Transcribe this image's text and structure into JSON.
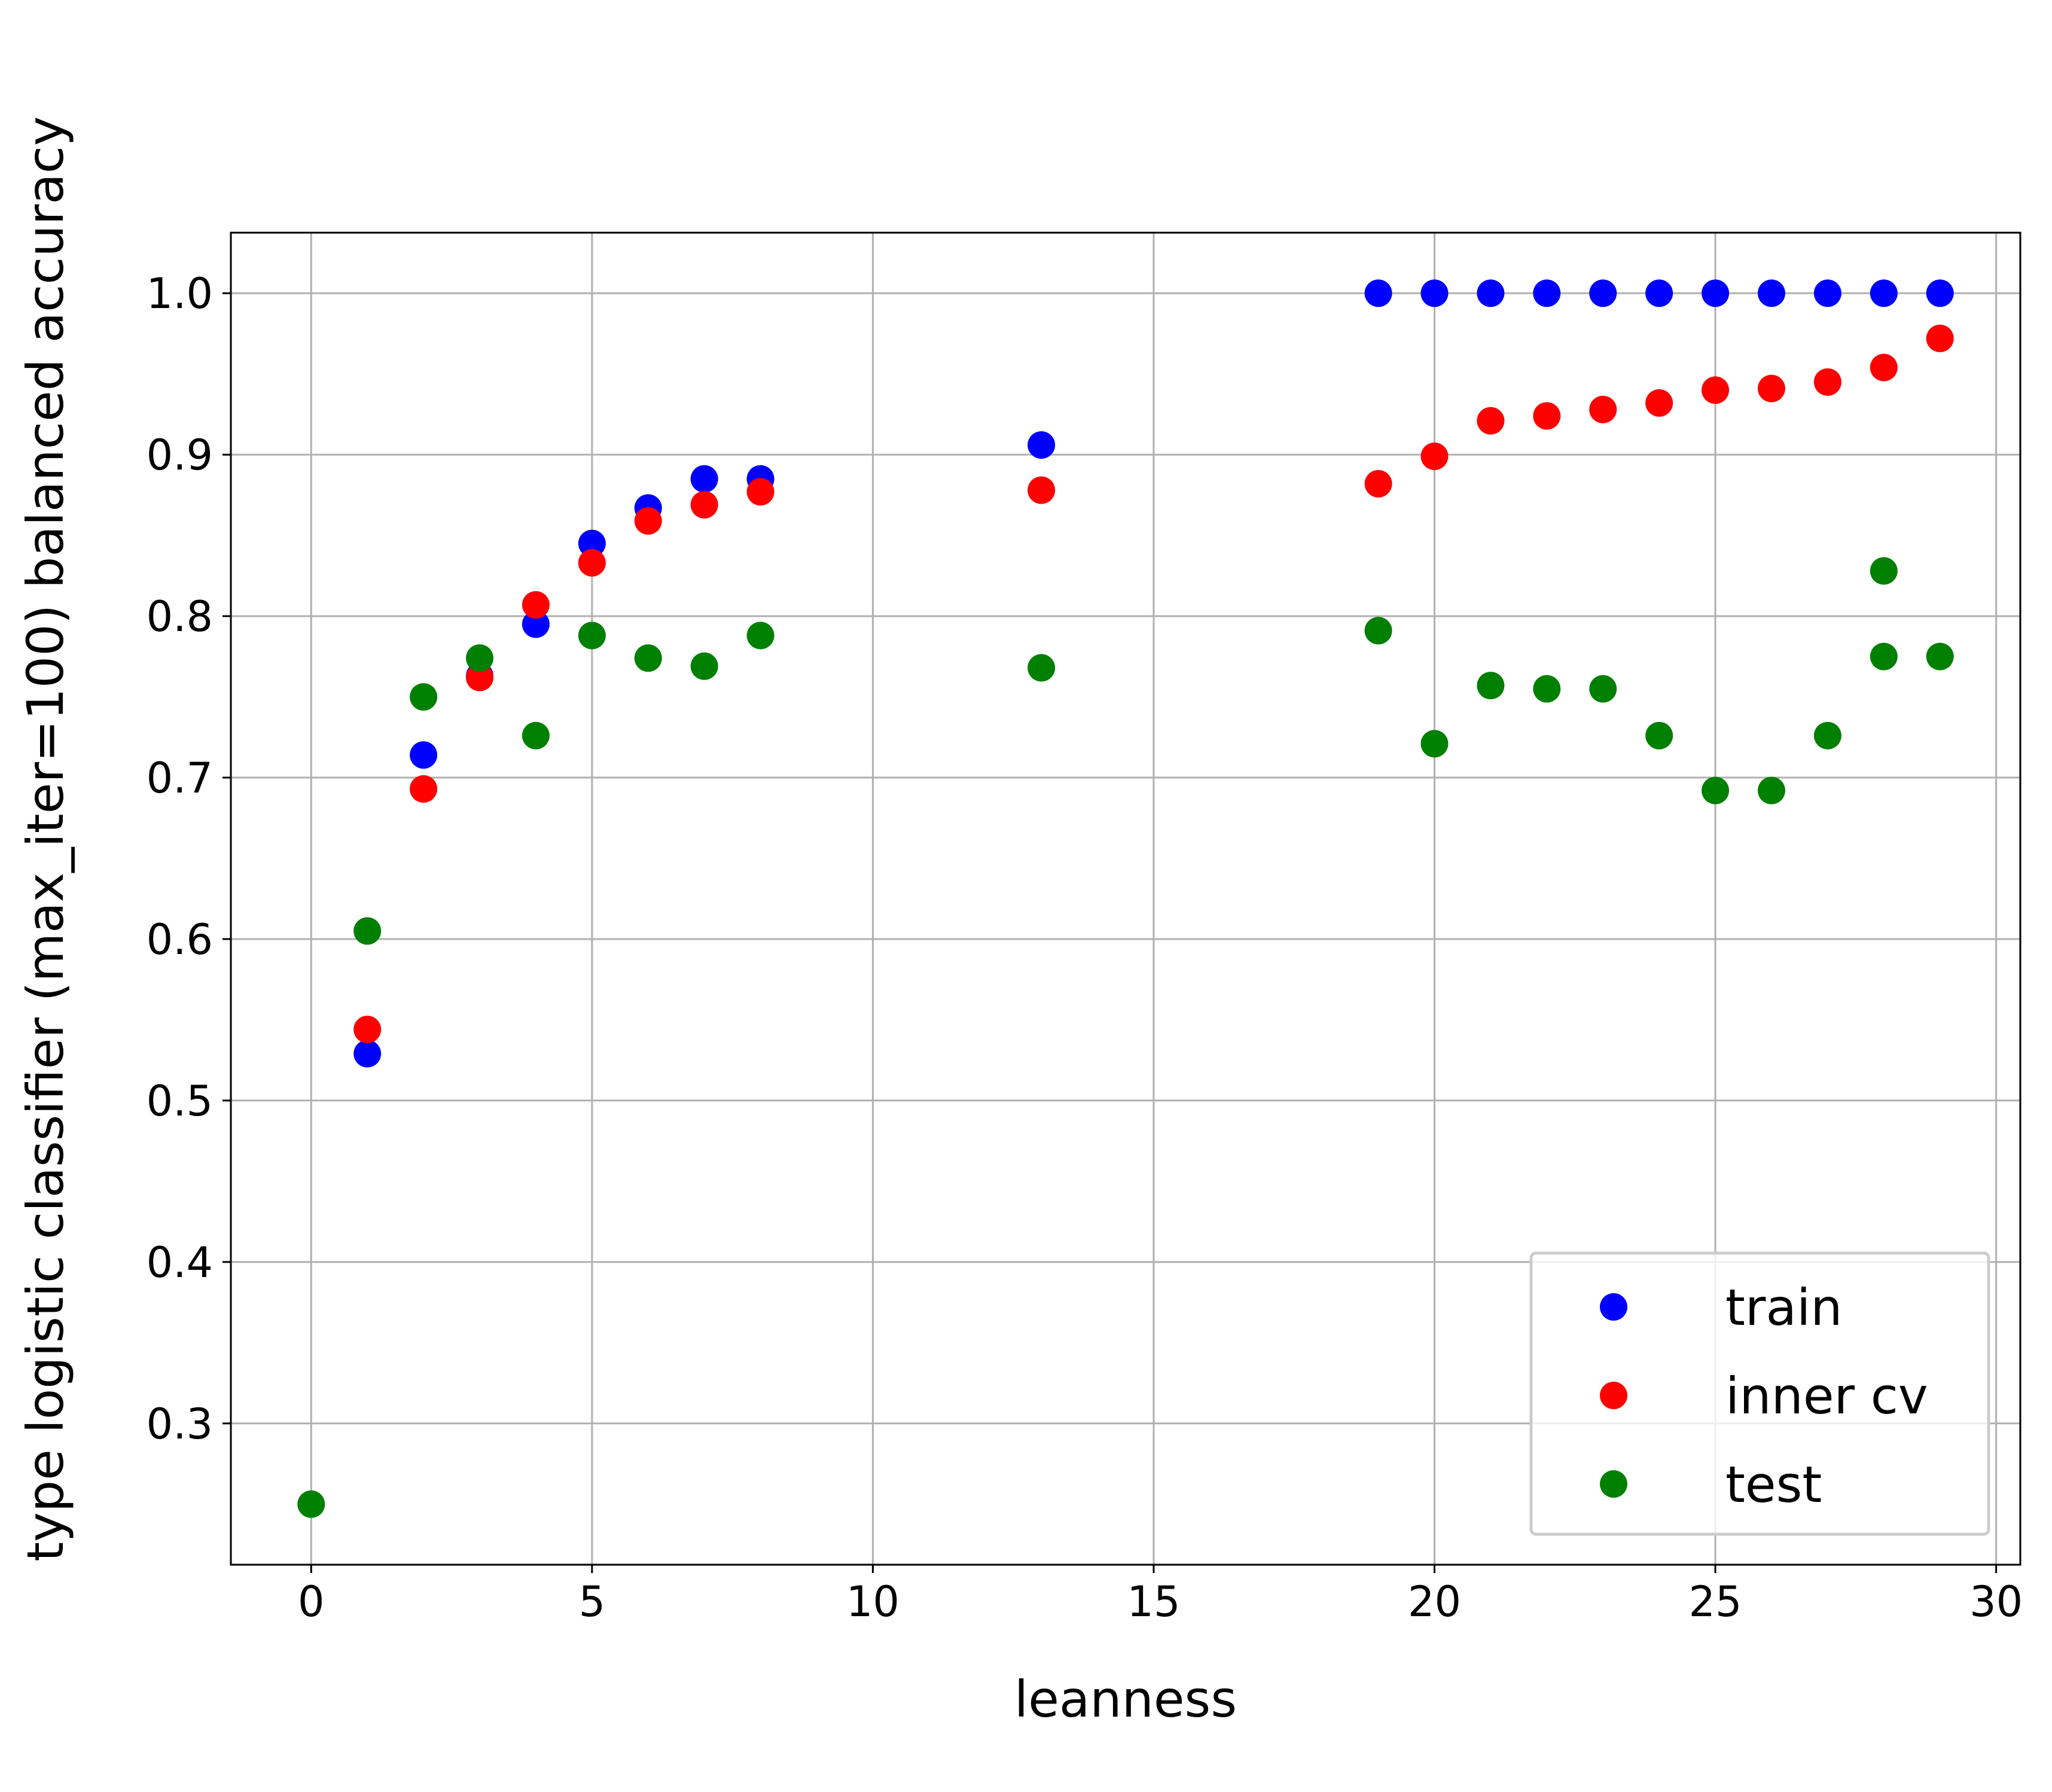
{
  "chart_data": {
    "type": "scatter",
    "title": "",
    "xlabel": "leanness",
    "ylabel": "type logistic classifier (max_iter=100) balanced accuracy",
    "xlim": [
      -1.43,
      30.43
    ],
    "ylim": [
      0.2125,
      1.0375
    ],
    "xticks": [
      0,
      5,
      10,
      15,
      20,
      25,
      30
    ],
    "yticks": [
      0.3,
      0.4,
      0.5,
      0.6,
      0.7,
      0.8,
      0.9,
      1.0
    ],
    "grid": true,
    "legend_position": "lower-right",
    "series": [
      {
        "name": "train",
        "color": "#0000ff",
        "x": [
          1,
          2,
          3,
          4,
          5,
          6,
          7,
          8,
          13,
          19,
          20,
          21,
          22,
          23,
          24,
          25,
          26,
          27,
          28,
          29
        ],
        "y": [
          0.529,
          0.714,
          0.763,
          0.795,
          0.845,
          0.867,
          0.885,
          0.885,
          0.906,
          1.0,
          1.0,
          1.0,
          1.0,
          1.0,
          1.0,
          1.0,
          1.0,
          1.0,
          1.0,
          1.0
        ]
      },
      {
        "name": "inner cv",
        "color": "#ff0000",
        "x": [
          1,
          2,
          3,
          4,
          5,
          6,
          7,
          8,
          13,
          19,
          20,
          21,
          22,
          23,
          24,
          25,
          26,
          27,
          28,
          29
        ],
        "y": [
          0.544,
          0.693,
          0.762,
          0.807,
          0.833,
          0.859,
          0.869,
          0.877,
          0.878,
          0.882,
          0.899,
          0.921,
          0.924,
          0.928,
          0.932,
          0.94,
          0.941,
          0.945,
          0.954,
          0.972
        ]
      },
      {
        "name": "test",
        "color": "#008000",
        "x": [
          0,
          1,
          2,
          3,
          4,
          5,
          6,
          7,
          8,
          13,
          19,
          20,
          21,
          22,
          23,
          24,
          25,
          26,
          27,
          28,
          28,
          29
        ],
        "y": [
          0.25,
          0.605,
          0.75,
          0.774,
          0.726,
          0.788,
          0.774,
          0.769,
          0.788,
          0.768,
          0.791,
          0.721,
          0.757,
          0.755,
          0.755,
          0.726,
          0.692,
          0.692,
          0.726,
          0.828,
          0.775,
          0.775
        ]
      }
    ]
  }
}
